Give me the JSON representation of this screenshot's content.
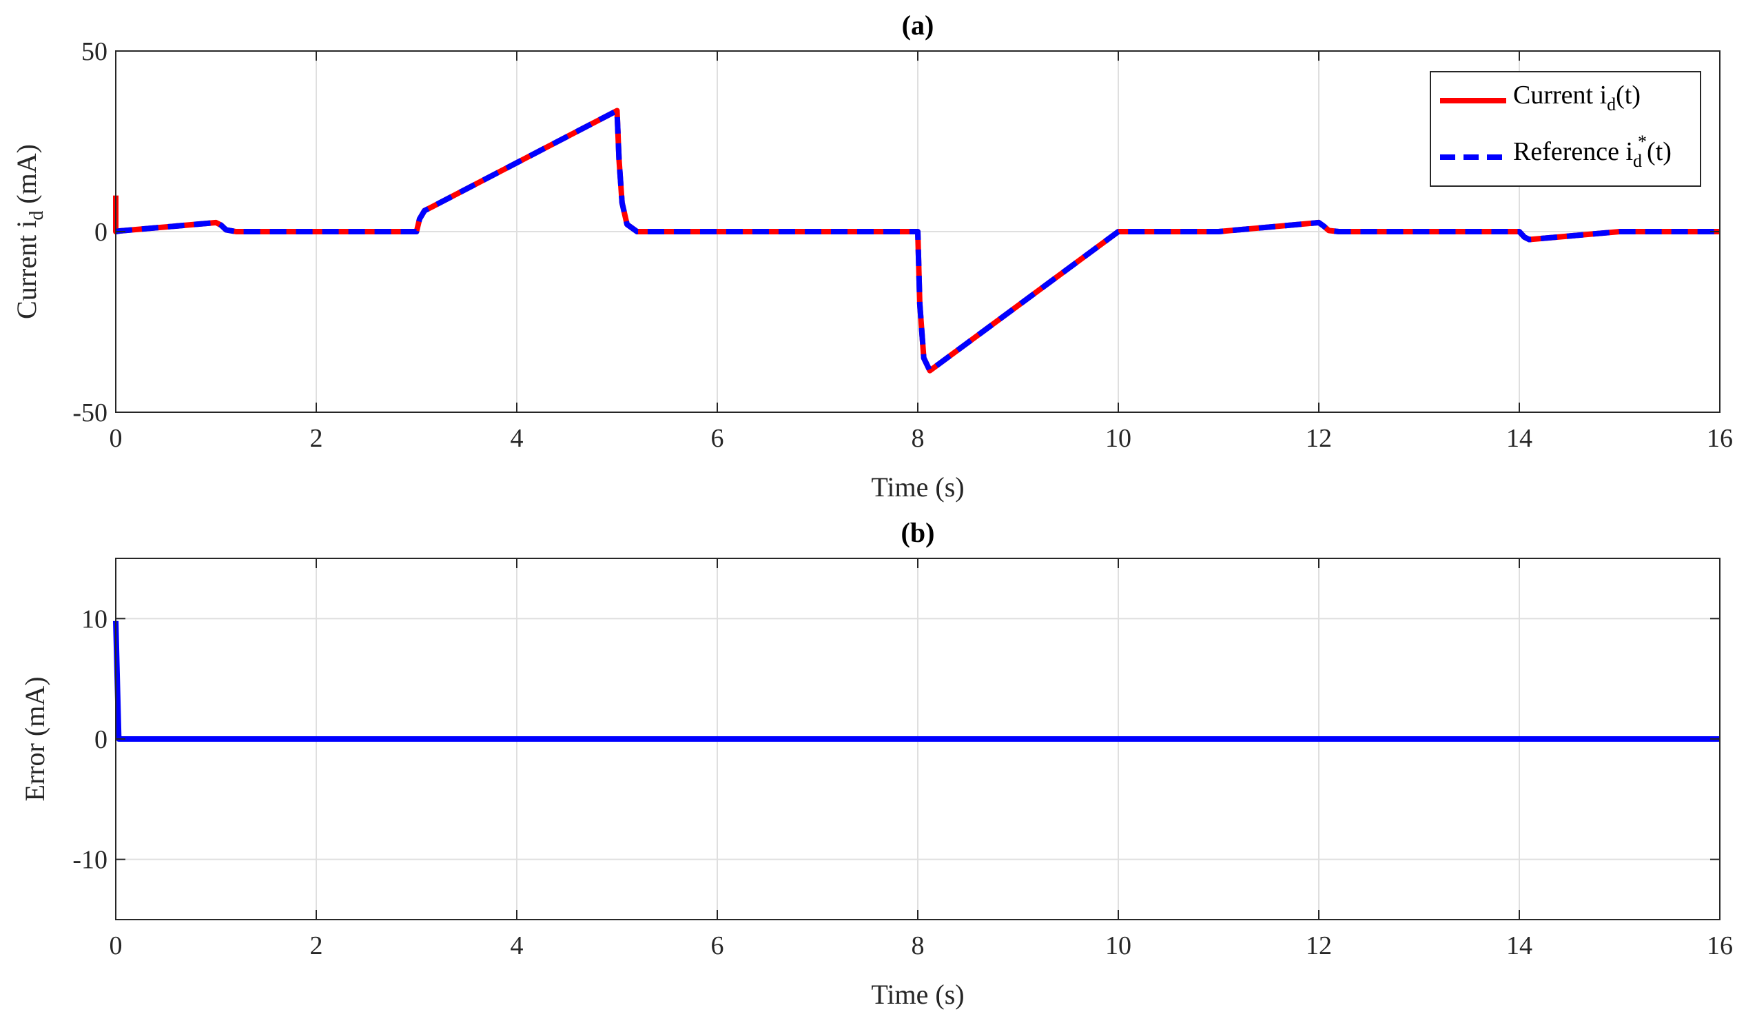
{
  "chart_data": [
    {
      "type": "line",
      "title": "(a)",
      "xlabel": "Time (s)",
      "ylabel": {
        "base": "Current i",
        "sub": "d",
        "unit": " (mA)"
      },
      "xlim": [
        0,
        16
      ],
      "ylim": [
        -50,
        50
      ],
      "xticks": [
        "0",
        "2",
        "4",
        "6",
        "8",
        "10",
        "12",
        "14",
        "16"
      ],
      "yticks": [
        "-50",
        "0",
        "50"
      ],
      "grid": true,
      "legend": {
        "position": "top-right",
        "entries": [
          {
            "base": "Current i",
            "sub": "d",
            "sup": "",
            "tail": "(t)"
          },
          {
            "base": "Reference i",
            "sub": "d",
            "sup": "*",
            "tail": "(t)"
          }
        ]
      },
      "series": [
        {
          "name": "Current id(t)",
          "color": "#ff0000",
          "style": "solid",
          "x": [
            0,
            0,
            0.04,
            1.0,
            1.05,
            1.1,
            1.2,
            3.0,
            3.03,
            3.08,
            3.15,
            5.0,
            5.02,
            5.05,
            5.1,
            5.2,
            8.0,
            8.02,
            8.06,
            8.12,
            10.0,
            11.0,
            12.0,
            12.05,
            12.1,
            12.2,
            14.0,
            14.05,
            14.1,
            15.0,
            16.0
          ],
          "y": [
            10,
            0,
            0.2,
            2.5,
            1.8,
            0.5,
            0,
            0,
            3.5,
            5.8,
            6.8,
            33.5,
            20,
            8,
            2,
            0,
            0,
            -20,
            -35,
            -38.5,
            0,
            0,
            2.5,
            1.5,
            0.3,
            0,
            0,
            -1.5,
            -2.2,
            0,
            0
          ]
        },
        {
          "name": "Reference id*(t)",
          "color": "#0000ff",
          "style": "dashed",
          "x": [
            0,
            0.04,
            1.0,
            1.05,
            1.1,
            1.2,
            3.0,
            3.03,
            3.08,
            3.15,
            5.0,
            5.02,
            5.05,
            5.1,
            5.2,
            8.0,
            8.02,
            8.06,
            8.12,
            10.0,
            11.0,
            12.0,
            12.05,
            12.1,
            12.2,
            14.0,
            14.05,
            14.1,
            15.0,
            16.0
          ],
          "y": [
            0,
            0.2,
            2.5,
            1.8,
            0.5,
            0,
            0,
            3.5,
            5.8,
            6.8,
            33.5,
            20,
            8,
            2,
            0,
            0,
            -20,
            -35,
            -38.5,
            0,
            0,
            2.5,
            1.5,
            0.3,
            0,
            0,
            -1.5,
            -2.2,
            0,
            0
          ]
        }
      ]
    },
    {
      "type": "line",
      "title": "(b)",
      "xlabel": "Time (s)",
      "ylabel": "Error (mA)",
      "xlim": [
        0,
        16
      ],
      "ylim": [
        -15,
        15
      ],
      "xticks": [
        "0",
        "2",
        "4",
        "6",
        "8",
        "10",
        "12",
        "14",
        "16"
      ],
      "yticks": [
        "-10",
        "0",
        "10"
      ],
      "grid": true,
      "series": [
        {
          "color": "#0000ff",
          "style": "solid",
          "x": [
            0,
            0,
            0.03,
            16
          ],
          "y": [
            9.8,
            9.8,
            0,
            0
          ]
        }
      ]
    }
  ]
}
